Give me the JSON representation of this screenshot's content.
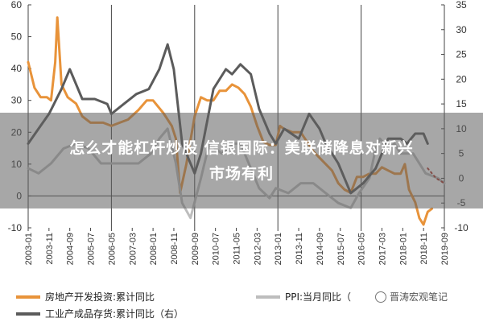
{
  "chart_data": {
    "type": "line",
    "title": "",
    "xlabel": "",
    "x_tick_labels": [
      "2003-01",
      "2003-11",
      "2004-09",
      "2005-07",
      "2006-05",
      "2007-03",
      "2008-01",
      "2008-11",
      "2009-09",
      "2010-07",
      "2011-05",
      "2012-03",
      "2013-01",
      "2013-11",
      "2014-09",
      "2015-07",
      "2016-05",
      "2017-03",
      "2018-01",
      "2018-11",
      "2019-09"
    ],
    "x_range": [
      "2003-01",
      "2019-09"
    ],
    "y_left": {
      "ticks": [
        "-10",
        "0",
        "10",
        "20",
        "30",
        "40",
        "50",
        "60"
      ],
      "range": [
        -10,
        60
      ]
    },
    "y_right": {
      "ticks": [
        "-10",
        "-5",
        "0",
        "5",
        "10",
        "15",
        "20",
        "25",
        "30",
        "35"
      ],
      "range": [
        -10,
        35
      ]
    },
    "grid": false,
    "vertical_lines": [
      "2003-01",
      "2006-05",
      "2009-09",
      "2013-01",
      "2016-05",
      "2019-09"
    ],
    "legend_position": "bottom",
    "series": [
      {
        "name": "房地产开发投资:累计同比",
        "axis": "left",
        "color": "#E8933A",
        "points": [
          [
            "2003-01",
            42
          ],
          [
            "2003-04",
            34
          ],
          [
            "2003-07",
            31
          ],
          [
            "2003-10",
            31
          ],
          [
            "2003-12",
            30
          ],
          [
            "2004-02",
            42
          ],
          [
            "2004-03",
            56
          ],
          [
            "2004-05",
            35
          ],
          [
            "2004-08",
            31
          ],
          [
            "2004-12",
            29
          ],
          [
            "2005-03",
            25
          ],
          [
            "2005-07",
            23
          ],
          [
            "2006-01",
            23
          ],
          [
            "2006-05",
            22
          ],
          [
            "2006-09",
            23
          ],
          [
            "2007-01",
            24
          ],
          [
            "2007-06",
            27
          ],
          [
            "2007-10",
            30
          ],
          [
            "2008-01",
            30
          ],
          [
            "2008-06",
            26
          ],
          [
            "2008-10",
            22
          ],
          [
            "2008-12",
            18
          ],
          [
            "2009-02",
            1
          ],
          [
            "2009-05",
            10
          ],
          [
            "2009-09",
            25
          ],
          [
            "2009-12",
            31
          ],
          [
            "2010-03",
            30
          ],
          [
            "2010-06",
            30
          ],
          [
            "2010-09",
            33
          ],
          [
            "2010-12",
            33
          ],
          [
            "2011-03",
            35
          ],
          [
            "2011-06",
            34
          ],
          [
            "2011-09",
            32
          ],
          [
            "2011-12",
            28
          ],
          [
            "2012-03",
            22
          ],
          [
            "2012-06",
            17
          ],
          [
            "2012-09",
            16
          ],
          [
            "2012-12",
            16
          ],
          [
            "2013-02",
            22
          ],
          [
            "2013-04",
            21
          ],
          [
            "2013-08",
            20
          ],
          [
            "2013-12",
            20
          ],
          [
            "2014-03",
            17
          ],
          [
            "2014-06",
            14
          ],
          [
            "2014-09",
            12
          ],
          [
            "2014-12",
            10
          ],
          [
            "2015-03",
            8
          ],
          [
            "2015-06",
            4
          ],
          [
            "2015-09",
            2
          ],
          [
            "2015-12",
            1
          ],
          [
            "2016-03",
            6
          ],
          [
            "2016-06",
            6
          ],
          [
            "2016-09",
            7
          ],
          [
            "2016-12",
            7
          ],
          [
            "2017-03",
            9
          ],
          [
            "2017-06",
            8
          ],
          [
            "2017-09",
            7
          ],
          [
            "2017-12",
            7
          ],
          [
            "2018-02",
            10
          ],
          [
            "2018-04",
            2
          ],
          [
            "2018-07",
            -2
          ],
          [
            "2018-09",
            -7
          ],
          [
            "2018-11",
            -9
          ],
          [
            "2019-01",
            -5
          ],
          [
            "2019-03",
            -4
          ]
        ]
      },
      {
        "name": "PPI:当月同比",
        "axis": "right",
        "color": "#BDBDBD",
        "points": [
          [
            "2003-01",
            2
          ],
          [
            "2003-06",
            1
          ],
          [
            "2003-12",
            3
          ],
          [
            "2004-06",
            6
          ],
          [
            "2004-12",
            7
          ],
          [
            "2005-06",
            6
          ],
          [
            "2005-12",
            3
          ],
          [
            "2006-06",
            3
          ],
          [
            "2006-12",
            3
          ],
          [
            "2007-06",
            3
          ],
          [
            "2007-12",
            5
          ],
          [
            "2008-04",
            8
          ],
          [
            "2008-08",
            10
          ],
          [
            "2008-12",
            3
          ],
          [
            "2009-03",
            -5
          ],
          [
            "2009-07",
            -8
          ],
          [
            "2009-12",
            0
          ],
          [
            "2010-04",
            7
          ],
          [
            "2010-10",
            5
          ],
          [
            "2011-04",
            7
          ],
          [
            "2011-07",
            7
          ],
          [
            "2011-12",
            2
          ],
          [
            "2012-04",
            -2
          ],
          [
            "2012-09",
            -4
          ],
          [
            "2012-12",
            -2
          ],
          [
            "2013-06",
            -3
          ],
          [
            "2013-12",
            -1
          ],
          [
            "2014-06",
            -1
          ],
          [
            "2014-12",
            -3
          ],
          [
            "2015-06",
            -5
          ],
          [
            "2015-12",
            -6
          ],
          [
            "2016-04",
            -3
          ],
          [
            "2016-09",
            0
          ],
          [
            "2016-12",
            6
          ],
          [
            "2017-02",
            8
          ],
          [
            "2017-06",
            6
          ],
          [
            "2017-09",
            7
          ],
          [
            "2017-12",
            5
          ],
          [
            "2018-06",
            5
          ],
          [
            "2018-12",
            1
          ],
          [
            "2019-06",
            0
          ],
          [
            "2019-09",
            -1
          ]
        ]
      },
      {
        "name": "工业产成品存货:累计同比（右）",
        "axis": "right",
        "color": "#5B5B5B",
        "points": [
          [
            "2003-01",
            7
          ],
          [
            "2003-06",
            10
          ],
          [
            "2003-11",
            13
          ],
          [
            "2004-05",
            18
          ],
          [
            "2004-09",
            22
          ],
          [
            "2005-03",
            16
          ],
          [
            "2005-09",
            16
          ],
          [
            "2006-03",
            15
          ],
          [
            "2006-05",
            13
          ],
          [
            "2006-11",
            15
          ],
          [
            "2007-05",
            17
          ],
          [
            "2007-11",
            18
          ],
          [
            "2008-04",
            22
          ],
          [
            "2008-08",
            27
          ],
          [
            "2008-11",
            22
          ],
          [
            "2009-03",
            7
          ],
          [
            "2009-09",
            1
          ],
          [
            "2009-12",
            5
          ],
          [
            "2010-06",
            18
          ],
          [
            "2010-12",
            22
          ],
          [
            "2011-03",
            21
          ],
          [
            "2011-07",
            23
          ],
          [
            "2011-12",
            21
          ],
          [
            "2012-04",
            14
          ],
          [
            "2012-09",
            9
          ],
          [
            "2012-12",
            7
          ],
          [
            "2013-04",
            10
          ],
          [
            "2013-11",
            8
          ],
          [
            "2014-04",
            13
          ],
          [
            "2014-09",
            10
          ],
          [
            "2014-12",
            7
          ],
          [
            "2015-06",
            3
          ],
          [
            "2015-12",
            -3
          ],
          [
            "2016-06",
            -1
          ],
          [
            "2016-12",
            2
          ],
          [
            "2017-06",
            8
          ],
          [
            "2017-12",
            8
          ],
          [
            "2018-03",
            7
          ],
          [
            "2018-07",
            9
          ],
          [
            "2018-11",
            9
          ],
          [
            "2019-01",
            7
          ]
        ]
      },
      {
        "name": "",
        "axis": "right",
        "color": "#B0352A",
        "dotted": true,
        "points": [
          [
            "2019-01",
            2
          ],
          [
            "2019-05",
            0
          ],
          [
            "2019-09",
            -1
          ]
        ]
      }
    ]
  },
  "banner": {
    "line1": "怎么才能杠杆炒股 信银国际：美联储降息对新兴",
    "line2": "市场有利"
  },
  "legend": [
    {
      "label": "房地产开发投资:累计同比",
      "color": "#E8933A"
    },
    {
      "label": "PPI:当月同比（",
      "color": "#BDBDBD"
    },
    {
      "label": "工业产成品存货:累计同比（右）",
      "color": "#5B5B5B"
    }
  ],
  "watermark": {
    "text": "晋涛宏观笔记"
  }
}
